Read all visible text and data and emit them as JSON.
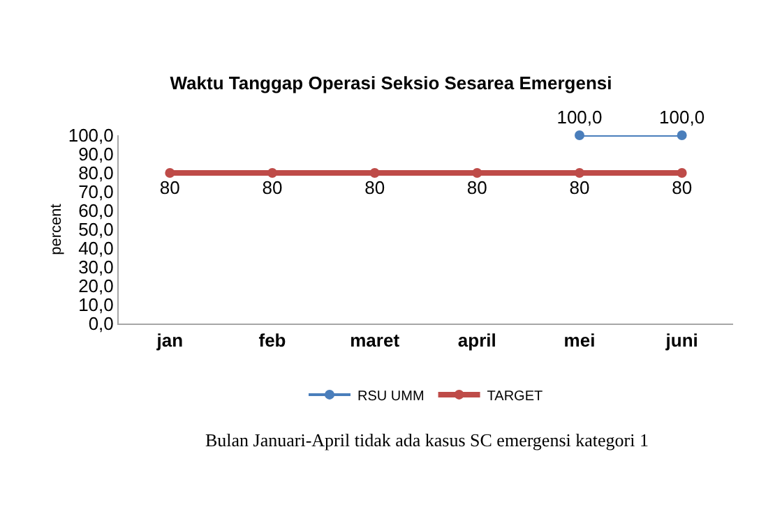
{
  "chart_data": {
    "type": "line",
    "title": "Waktu Tanggap Operasi Seksio Sesarea Emergensi",
    "ylabel": "percent",
    "categories": [
      "jan",
      "feb",
      "maret",
      "april",
      "mei",
      "juni"
    ],
    "series": [
      {
        "name": "RSU UMM",
        "color": "#4a7ebb",
        "values": [
          null,
          null,
          null,
          null,
          100,
          100
        ],
        "value_labels": [
          null,
          null,
          null,
          null,
          "100,0",
          "100,0"
        ]
      },
      {
        "name": "TARGET",
        "color": "#be4b48",
        "values": [
          80,
          80,
          80,
          80,
          80,
          80
        ],
        "value_labels": [
          "80",
          "80",
          "80",
          "80",
          "80",
          "80"
        ]
      }
    ],
    "ylim": [
      0,
      100
    ],
    "yticks": [
      {
        "value": 0,
        "label": "0,0"
      },
      {
        "value": 10,
        "label": "10,0"
      },
      {
        "value": 20,
        "label": "20,0"
      },
      {
        "value": 30,
        "label": "30,0"
      },
      {
        "value": 40,
        "label": "40,0"
      },
      {
        "value": 50,
        "label": "50,0"
      },
      {
        "value": 60,
        "label": "60,0"
      },
      {
        "value": 70,
        "label": "70,0"
      },
      {
        "value": 80,
        "label": "80,0"
      },
      {
        "value": 90,
        "label": "90,0"
      },
      {
        "value": 100,
        "label": "100,0"
      }
    ],
    "legend": "bottom",
    "marker": "circle",
    "line_style": "solid",
    "annotations": [
      "Bulan Januari-April tidak ada kasus SC emergensi kategori 1"
    ]
  }
}
